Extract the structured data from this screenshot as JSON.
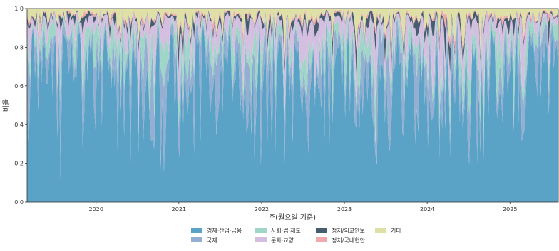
{
  "chart_data": {
    "type": "area",
    "stacked": "normalized",
    "xlabel": "주(월요일 기준)",
    "ylabel": "비율",
    "ylim": [
      0,
      1
    ],
    "yticks": [
      "0.0",
      "0.2",
      "0.4",
      "0.6",
      "0.8",
      "1.0"
    ],
    "xticks": [
      "2020",
      "2021",
      "2022",
      "2023",
      "2024",
      "2025"
    ],
    "x_range": [
      "2019-03",
      "2025-08"
    ],
    "grid": false,
    "legend_position": "bottom-center",
    "series": [
      {
        "name": "경제·산업·금융",
        "color": "#5aa2c6",
        "mean_share": 0.66
      },
      {
        "name": "국제",
        "color": "#94afd1",
        "mean_share": 0.12
      },
      {
        "name": "사회·법·제도",
        "color": "#9fd6c8",
        "mean_share": 0.07
      },
      {
        "name": "문화·교양",
        "color": "#d4bfe0",
        "mean_share": 0.08
      },
      {
        "name": "정치/외교안보",
        "color": "#465d70",
        "mean_share": 0.02
      },
      {
        "name": "정치/국내현안",
        "color": "#f0aaae",
        "mean_share": 0.01
      },
      {
        "name": "기타",
        "color": "#dfe0a6",
        "mean_share": 0.04
      }
    ]
  }
}
